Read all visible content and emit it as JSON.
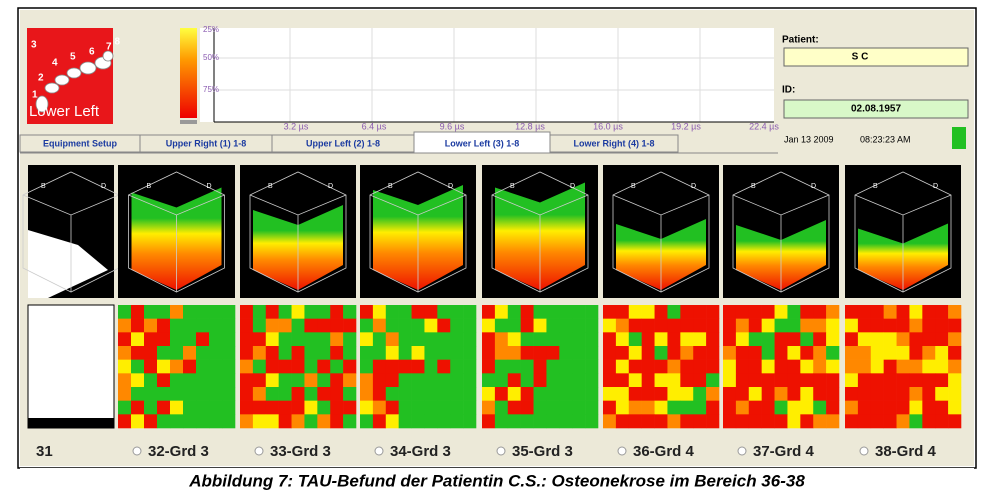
{
  "tooth_image": {
    "numbers": [
      "3",
      "4",
      "5",
      "6",
      "7",
      "8",
      "2",
      "1"
    ],
    "label": "Lower Left"
  },
  "graph": {
    "y_labels": [
      "25%",
      "50%",
      "75%"
    ],
    "x_labels": [
      "3.2 µs",
      "6.4 µs",
      "9.6 µs",
      "12.8 µs",
      "16.0 µs",
      "19.2 µs",
      "22.4 µs"
    ]
  },
  "patient": {
    "patient_label": "Patient:",
    "patient_name": "S     C",
    "id_label": "ID:",
    "id_value": "02.08.1957",
    "date": "Jan 13 2009",
    "time": "08:23:23 AM"
  },
  "tabs": [
    "Equipment Setup",
    "Upper Right (1) 1-8",
    "Upper Left (2) 1-8",
    "Lower Left (3) 1-8",
    "Lower Right (4) 1-8"
  ],
  "cube_labels": [
    "B",
    "D"
  ],
  "teeth": [
    "31",
    "32-Grd 3",
    "33-Grd 3",
    "34-Grd 3",
    "35-Grd 3",
    "36-Grd 4",
    "37-Grd 4",
    "38-Grd 4"
  ],
  "caption": "Abbildung 7: TAU-Befund der Patientin C.S.: Osteonekrose im Bereich 36-38"
}
